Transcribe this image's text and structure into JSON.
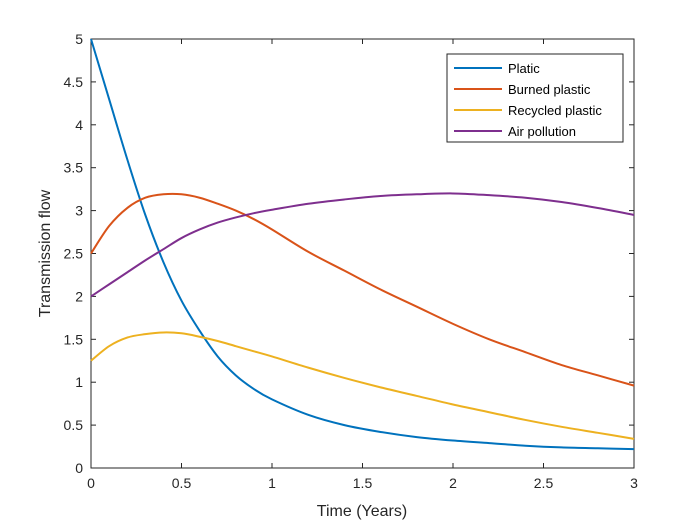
{
  "chart_data": {
    "type": "line",
    "title": "",
    "xlabel": "Time (Years)",
    "ylabel": "Transmission flow",
    "xlim": [
      0,
      3
    ],
    "ylim": [
      0,
      5
    ],
    "xticks": [
      0,
      0.5,
      1,
      1.5,
      2,
      2.5,
      3
    ],
    "xtick_labels": [
      "0",
      "0.5",
      "1",
      "1.5",
      "2",
      "2.5",
      "3"
    ],
    "yticks": [
      0,
      0.5,
      1,
      1.5,
      2,
      2.5,
      3,
      3.5,
      4,
      4.5,
      5
    ],
    "ytick_labels": [
      "0",
      "0.5",
      "1",
      "1.5",
      "2",
      "2.5",
      "3",
      "3.5",
      "4",
      "4.5",
      "5"
    ],
    "grid": false,
    "legend_position": "top-right",
    "x": [
      0,
      0.1,
      0.2,
      0.3,
      0.4,
      0.5,
      0.6,
      0.7,
      0.8,
      0.9,
      1.0,
      1.2,
      1.4,
      1.6,
      1.8,
      2.0,
      2.2,
      2.4,
      2.6,
      2.8,
      3.0
    ],
    "series": [
      {
        "name": "Platic",
        "color": "#0072BD",
        "values": [
          5.0,
          4.3,
          3.6,
          2.95,
          2.4,
          1.95,
          1.6,
          1.3,
          1.08,
          0.92,
          0.8,
          0.62,
          0.5,
          0.42,
          0.36,
          0.32,
          0.29,
          0.26,
          0.24,
          0.23,
          0.22
        ]
      },
      {
        "name": "Burned plastic",
        "color": "#D95319",
        "values": [
          2.5,
          2.82,
          3.03,
          3.15,
          3.19,
          3.19,
          3.15,
          3.08,
          3.0,
          2.9,
          2.78,
          2.52,
          2.3,
          2.08,
          1.88,
          1.68,
          1.5,
          1.35,
          1.2,
          1.08,
          0.96
        ]
      },
      {
        "name": "Recycled plastic",
        "color": "#EDB120",
        "values": [
          1.25,
          1.42,
          1.52,
          1.56,
          1.58,
          1.57,
          1.53,
          1.48,
          1.42,
          1.36,
          1.3,
          1.17,
          1.05,
          0.94,
          0.84,
          0.74,
          0.65,
          0.56,
          0.48,
          0.41,
          0.34
        ]
      },
      {
        "name": "Air pollution",
        "color": "#7E2F8E",
        "values": [
          2.0,
          2.14,
          2.28,
          2.42,
          2.55,
          2.68,
          2.78,
          2.86,
          2.92,
          2.97,
          3.01,
          3.08,
          3.13,
          3.17,
          3.19,
          3.2,
          3.18,
          3.15,
          3.1,
          3.03,
          2.95
        ]
      }
    ]
  }
}
